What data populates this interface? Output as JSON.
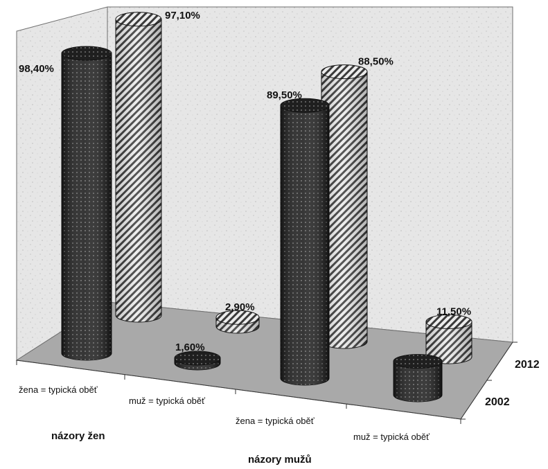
{
  "chart_data": {
    "type": "bar",
    "style": "3d-cylinder",
    "categories": [
      "žena = typická oběť",
      "muž = typická oběť",
      "žena = typická oběť",
      "muž = typická oběť"
    ],
    "groups": [
      "názory žen",
      "názory mužů"
    ],
    "series": [
      {
        "name": "2002",
        "values": [
          98.4,
          1.6,
          89.5,
          11.0
        ]
      },
      {
        "name": "2012",
        "values": [
          97.1,
          2.9,
          88.5,
          11.5
        ]
      }
    ],
    "data_labels": {
      "2002": [
        "98,40%",
        "1,60%",
        "89,50%",
        ""
      ],
      "2012": [
        "97,10%",
        "2,90%",
        "88,50%",
        "11,50%"
      ]
    },
    "ylim": [
      0,
      100
    ],
    "legend": "depth-axis-right",
    "colors": {
      "2002": "#1f1f1f",
      "2012": "#d8d8d8",
      "floor": "#a9a9a9",
      "walls": "#e6e6e6"
    }
  }
}
